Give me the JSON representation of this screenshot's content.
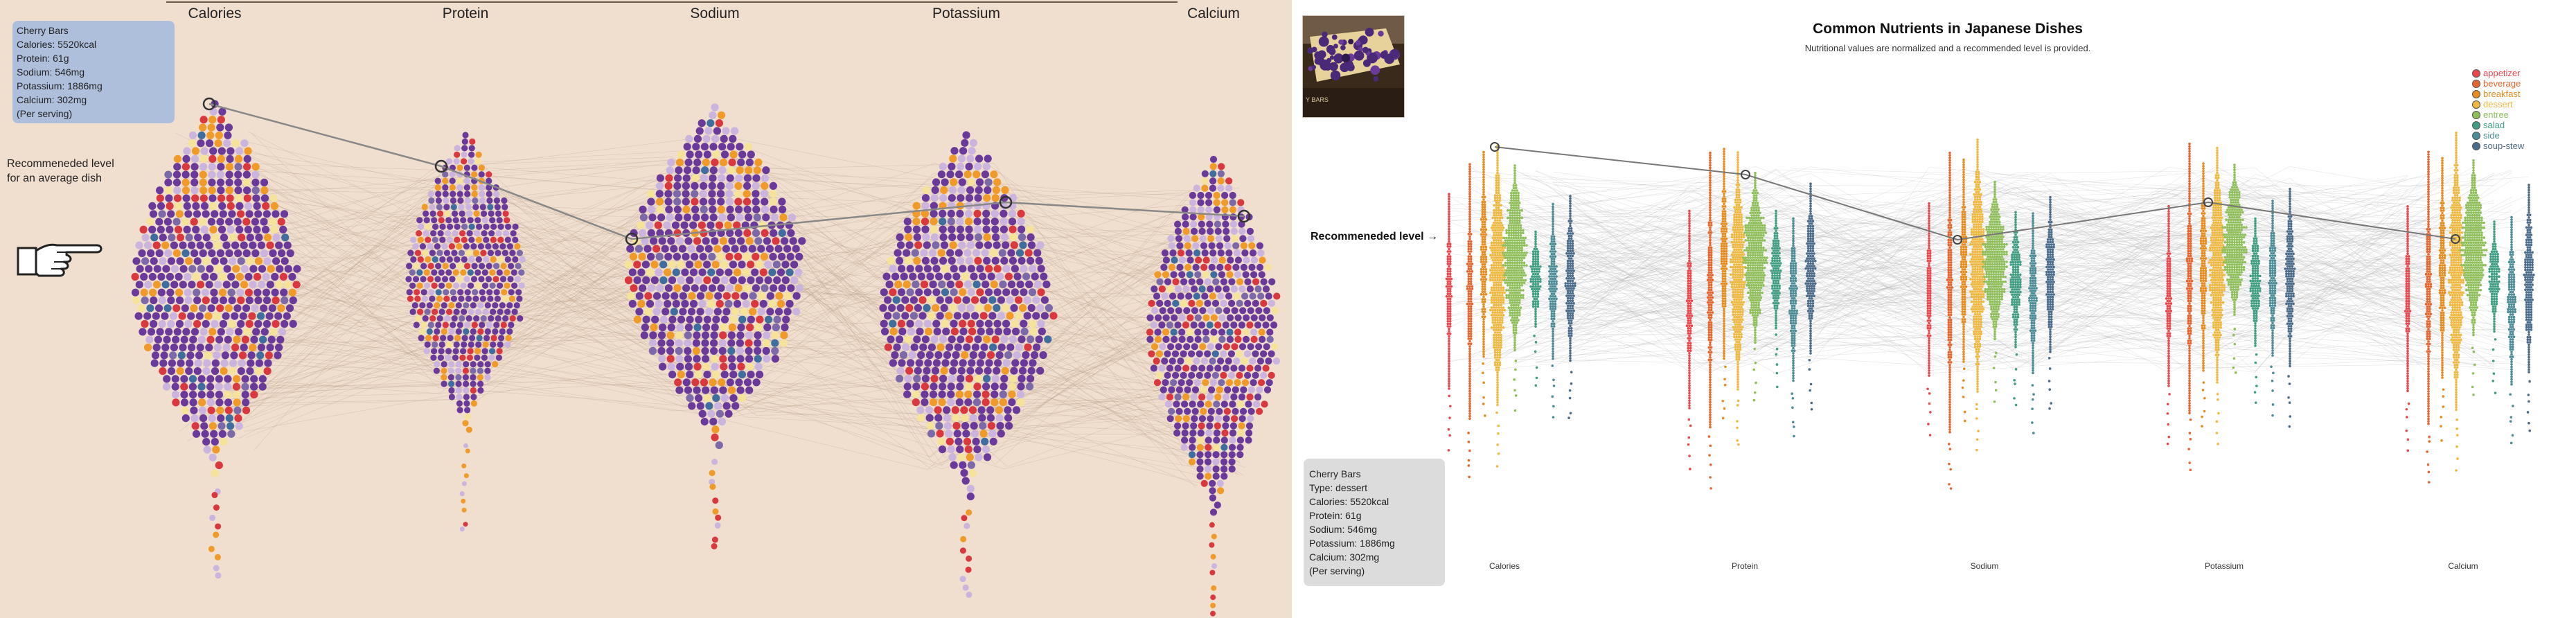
{
  "left": {
    "axis_labels": [
      "Calories",
      "Protein",
      "Sodium",
      "Potassium",
      "Calcium"
    ],
    "tooltip": {
      "name": "Cherry Bars",
      "lines": [
        "Calories: 5520kcal",
        "Protein: 61g",
        "Sodium: 546mg",
        "Potassium: 1886mg",
        "Calcium: 302mg",
        "(Per serving)"
      ]
    },
    "recommended_text_lines": [
      "Recommeneded level",
      "for an average dish"
    ],
    "colors": {
      "background": "#f0dece",
      "dot_main": "#6a3a9a",
      "dot_light": "#cbb4dd",
      "highlight_line": "#888888"
    }
  },
  "right": {
    "title": "Common Nutrients in Japanese Dishes",
    "subtitle": "Nutritional values are normalized and a recommended level is provided.",
    "recommended_label": "Recommeneded level →",
    "axis_labels": [
      "Calories",
      "Protein",
      "Sodium",
      "Potassium",
      "Calcium"
    ],
    "legend": [
      {
        "name": "appetizer",
        "color": "#e8474c"
      },
      {
        "name": "beverage",
        "color": "#e4662e"
      },
      {
        "name": "breakfast",
        "color": "#e68c1e"
      },
      {
        "name": "dessert",
        "color": "#efb840"
      },
      {
        "name": "entree",
        "color": "#8fbf5a"
      },
      {
        "name": "salad",
        "color": "#3f9e82"
      },
      {
        "name": "side",
        "color": "#4b8c96"
      },
      {
        "name": "soup-stew",
        "color": "#4a6b8a"
      }
    ],
    "tooltip": {
      "name": "Cherry Bars",
      "lines": [
        "Type: dessert",
        "Calories: 5520kcal",
        "Protein: 61g",
        "Sodium: 546mg",
        "Potassium: 1886mg",
        "Calcium: 302mg",
        "(Per serving)"
      ]
    },
    "photo_caption": "Y BARS"
  },
  "chart_data": [
    {
      "type": "scatter",
      "style": "beeswarm",
      "axes": [
        "Calories",
        "Protein",
        "Sodium",
        "Potassium",
        "Calcium"
      ],
      "highlighted_item": {
        "name": "Cherry Bars",
        "values": {
          "Calories": 5520,
          "Protein": 61,
          "Sodium": 546,
          "Potassium": 1886,
          "Calcium": 302
        },
        "units": [
          "kcal",
          "g",
          "mg",
          "mg",
          "mg"
        ]
      },
      "grid": false,
      "legend": "none"
    },
    {
      "type": "scatter",
      "style": "beeswarm",
      "title": "Common Nutrients in Japanese Dishes",
      "axes": [
        "Calories",
        "Protein",
        "Sodium",
        "Potassium",
        "Calcium"
      ],
      "categories": [
        "appetizer",
        "beverage",
        "breakfast",
        "dessert",
        "entree",
        "salad",
        "side",
        "soup-stew"
      ],
      "highlighted_item": {
        "name": "Cherry Bars",
        "type": "dessert",
        "values": {
          "Calories": 5520,
          "Protein": 61,
          "Sodium": 546,
          "Potassium": 1886,
          "Calcium": 302
        }
      },
      "grid": false,
      "legend": "top-right"
    }
  ]
}
